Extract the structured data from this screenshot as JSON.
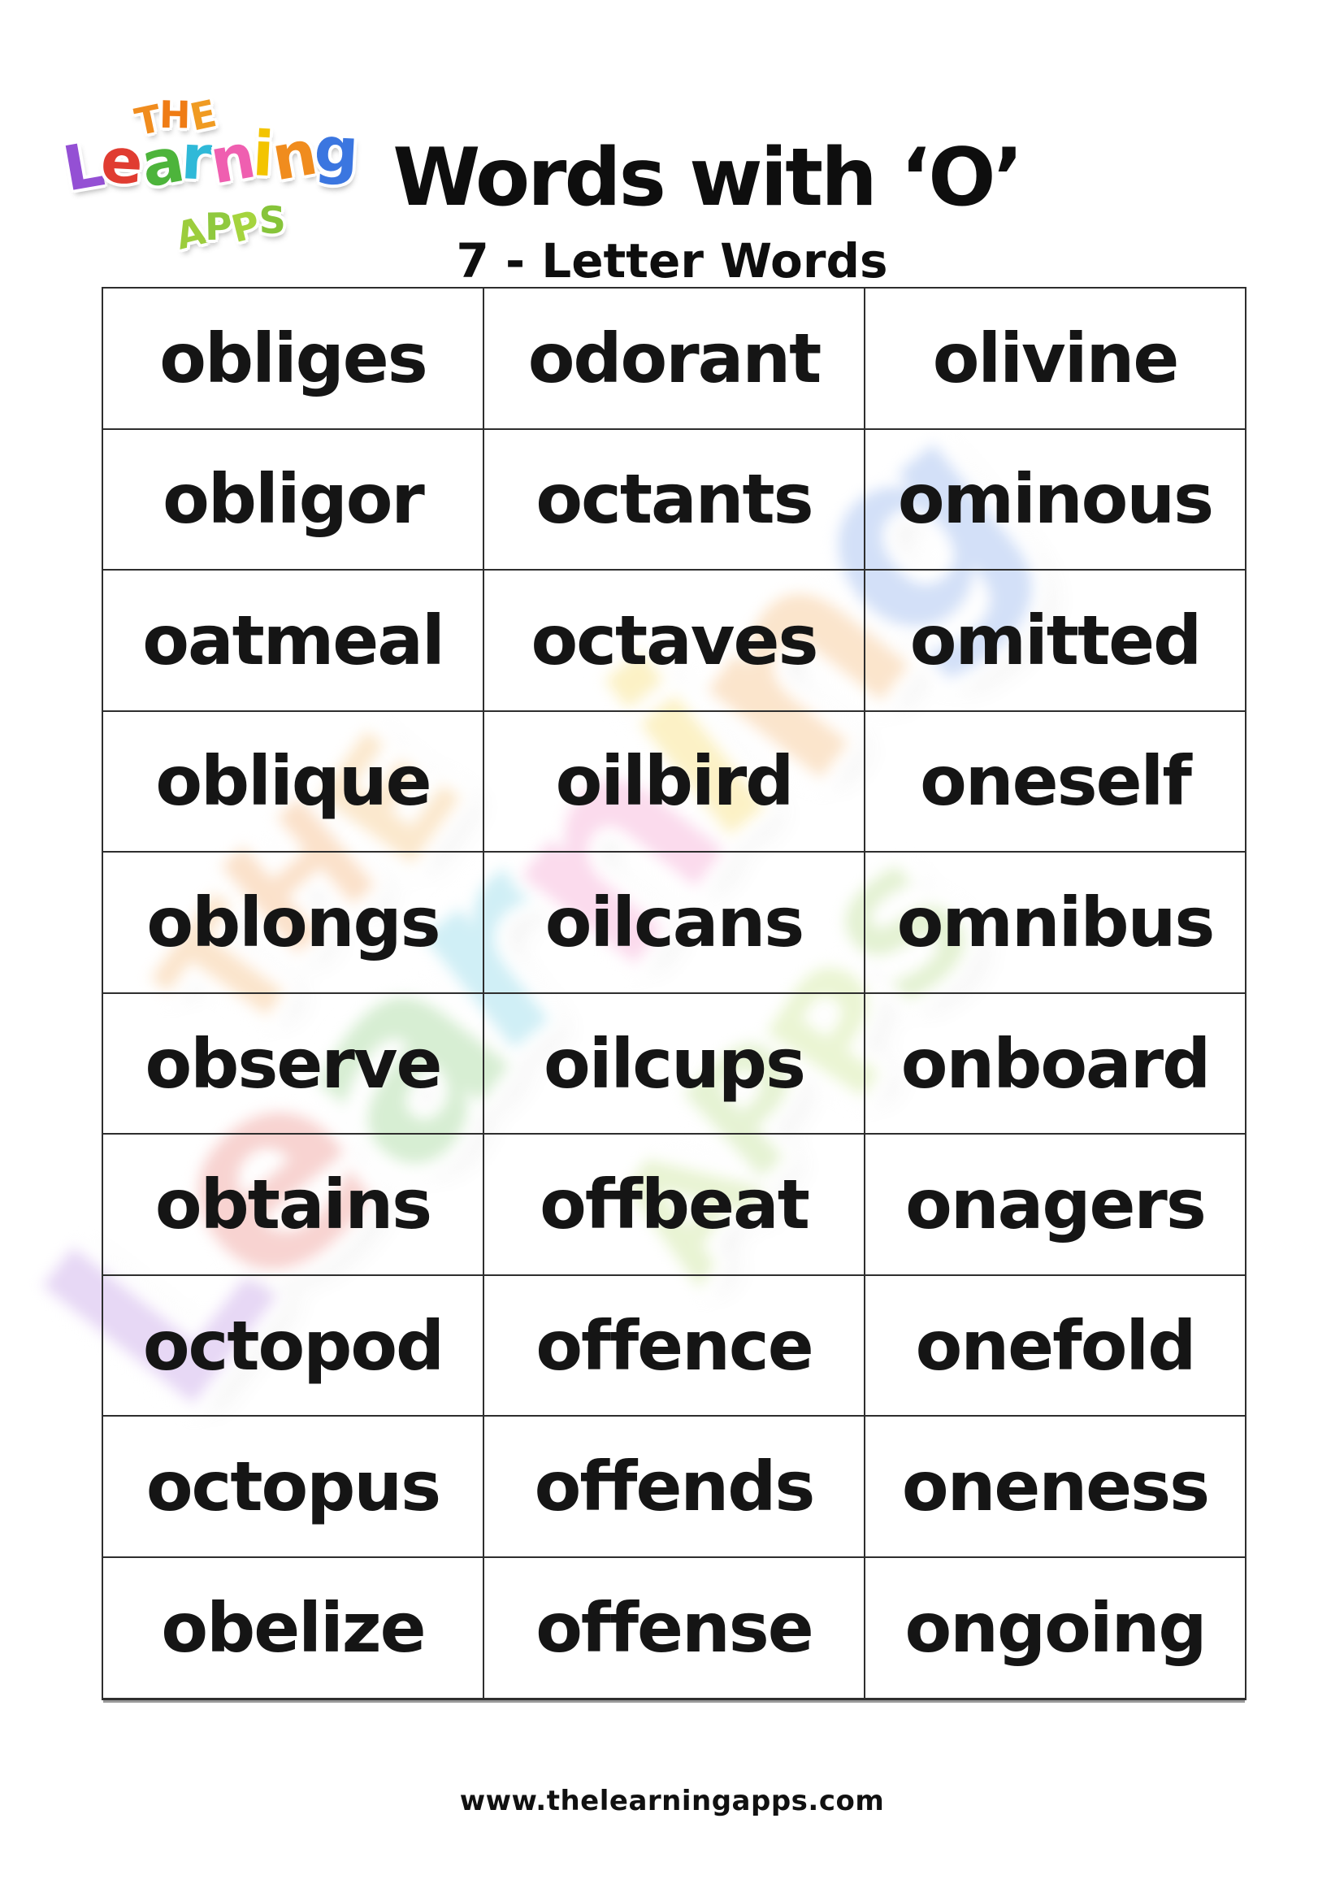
{
  "page": {
    "title": "Words with ‘O’",
    "subtitle": "7 - Letter Words",
    "footer_url": "www.thelearningapps.com"
  },
  "brand": {
    "name": "The Learning Apps",
    "the_letters": [
      {
        "ch": "T",
        "color": "#f08c1e"
      },
      {
        "ch": "H",
        "color": "#ef7c15"
      },
      {
        "ch": "E",
        "color": "#f09b22"
      }
    ],
    "learning_letters": [
      {
        "ch": "L",
        "color": "#9450d4"
      },
      {
        "ch": "e",
        "color": "#e03c31"
      },
      {
        "ch": "a",
        "color": "#4db43b"
      },
      {
        "ch": "r",
        "color": "#2fb9d8"
      },
      {
        "ch": "n",
        "color": "#ef5fb0"
      },
      {
        "ch": "i",
        "color": "#f3c400"
      },
      {
        "ch": "n",
        "color": "#f08c1e"
      },
      {
        "ch": "g",
        "color": "#3b76e0"
      }
    ],
    "apps_letters": [
      {
        "ch": "A",
        "color": "#9ccd3c"
      },
      {
        "ch": "P",
        "color": "#8fc93e"
      },
      {
        "ch": "P",
        "color": "#a5d43e"
      },
      {
        "ch": "S",
        "color": "#86c43a"
      }
    ]
  },
  "table": {
    "columns": 3,
    "rows": [
      [
        "obliges",
        "odorant",
        "olivine"
      ],
      [
        "obligor",
        "octants",
        "ominous"
      ],
      [
        "oatmeal",
        "octaves",
        "omitted"
      ],
      [
        "oblique",
        "oilbird",
        "oneself"
      ],
      [
        "oblongs",
        "oilcans",
        "omnibus"
      ],
      [
        "observe",
        "oilcups",
        "onboard"
      ],
      [
        "obtains",
        "offbeat",
        "onagers"
      ],
      [
        "octopod",
        "offence",
        "onefold"
      ],
      [
        "octopus",
        "offends",
        "oneness"
      ],
      [
        "obelize",
        "offense",
        "ongoing"
      ]
    ]
  },
  "colors": {
    "text": "#151515",
    "table_border": "#2e2e2e",
    "background": "#ffffff"
  }
}
